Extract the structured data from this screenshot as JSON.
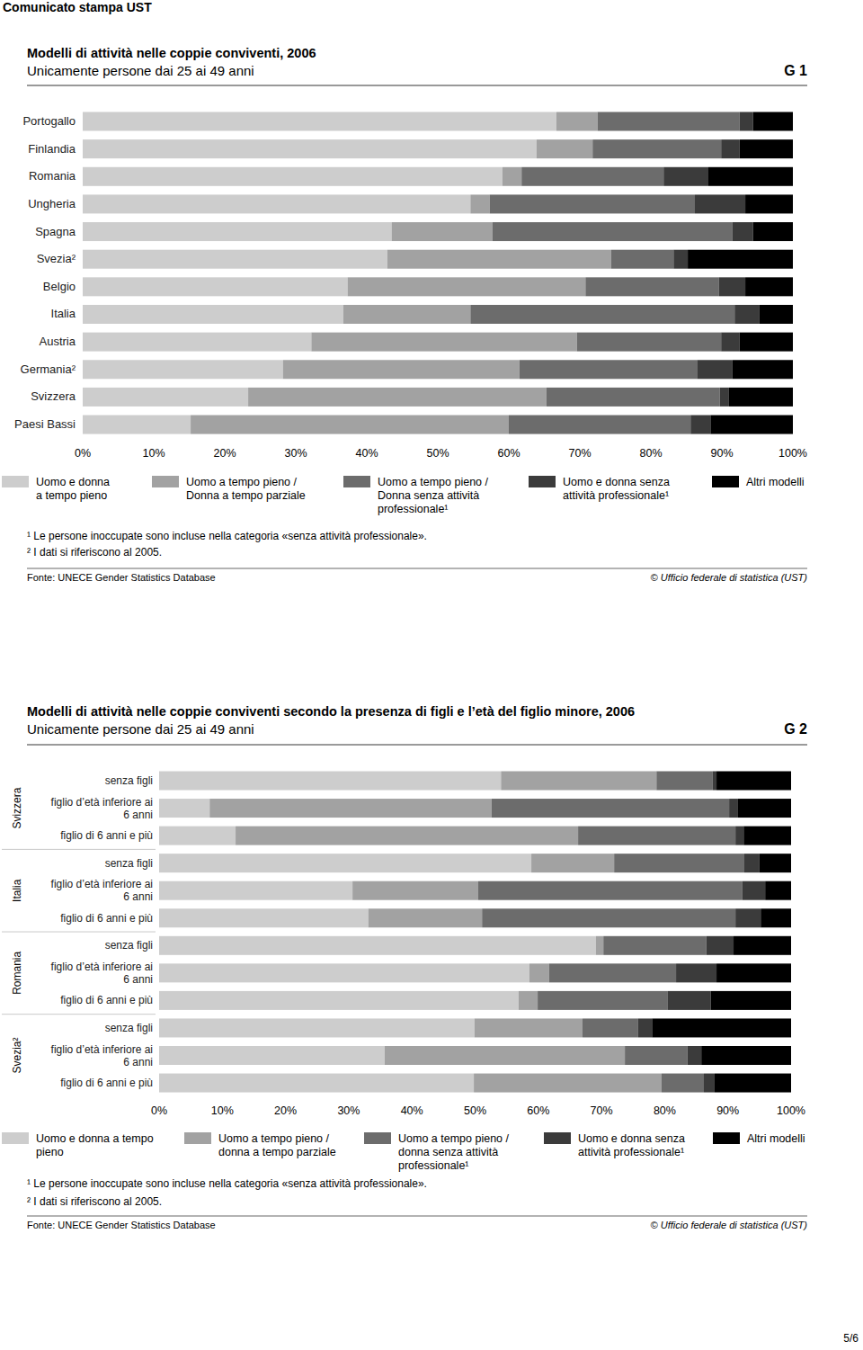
{
  "header": "Comunicato stampa UST",
  "page_number": "5/6",
  "chart_data": [
    {
      "type": "bar",
      "orientation": "horizontal",
      "stacked": true,
      "grid": false,
      "title": "Modelli di attività nelle coppie conviventi, 2006",
      "subtitle": "Unicamente persone dai 25 ai 49 anni",
      "chart_id": "G 1",
      "categories": [
        "Portogallo",
        "Finlandia",
        "Romania",
        "Ungheria",
        "Spagna",
        "Svezia²",
        "Belgio",
        "Italia",
        "Austria",
        "Germania²",
        "Svizzera",
        "Paesi Bassi"
      ],
      "series": [
        {
          "name": "Uomo e donna a tempo pieno",
          "color": "#cdcdcd",
          "values": [
            66.7,
            63.9,
            59.1,
            54.6,
            43.5,
            42.9,
            37.3,
            36.7,
            32.2,
            28.2,
            23.3,
            15.2
          ]
        },
        {
          "name": "Uomo a tempo pieno / Donna a tempo parziale",
          "color": "#a2a2a2",
          "values": [
            5.8,
            7.9,
            2.7,
            2.7,
            14.2,
            31.5,
            33.5,
            17.9,
            37.4,
            33.3,
            42.0,
            44.8
          ]
        },
        {
          "name": "Uomo a tempo pieno / Donna senza attività professionale¹",
          "color": "#6c6c6c",
          "values": [
            20.0,
            18.1,
            20.0,
            28.9,
            33.8,
            8.8,
            18.8,
            37.2,
            20.3,
            25.0,
            24.4,
            25.6
          ]
        },
        {
          "name": "Uomo e donna senza attività professionale¹",
          "color": "#3b3b3b",
          "values": [
            1.9,
            2.6,
            6.3,
            7.1,
            2.9,
            2.0,
            3.7,
            3.5,
            2.6,
            5.0,
            1.3,
            2.8
          ]
        },
        {
          "name": "Altri modelli",
          "color": "#000000",
          "values": [
            5.6,
            7.5,
            11.9,
            6.7,
            5.6,
            14.8,
            6.7,
            4.7,
            7.5,
            8.5,
            9.0,
            11.6
          ]
        }
      ],
      "xlim": [
        0,
        100
      ],
      "xticks": [
        {
          "value": 0,
          "label": "0%"
        },
        {
          "value": 10,
          "label": "10%"
        },
        {
          "value": 20,
          "label": "20%"
        },
        {
          "value": 30,
          "label": "30%"
        },
        {
          "value": 40,
          "label": "40%"
        },
        {
          "value": 50,
          "label": "50%"
        },
        {
          "value": 60,
          "label": "60%"
        },
        {
          "value": 70,
          "label": "70%"
        },
        {
          "value": 80,
          "label": "80%"
        },
        {
          "value": 90,
          "label": "90%"
        },
        {
          "value": 100,
          "label": "100%"
        }
      ],
      "footnotes": [
        "¹ Le persone inoccupate sono incluse nella categoria «senza attività professionale».",
        "² I dati si riferiscono al 2005."
      ],
      "source": "Fonte: UNECE Gender Statistics Database",
      "copyright": "© Ufficio federale di statistica (UST)"
    },
    {
      "type": "bar",
      "orientation": "horizontal",
      "stacked": true,
      "grid": false,
      "title": "Modelli di attività nelle coppie conviventi secondo la presenza di figli e l’età del figlio minore, 2006",
      "subtitle": "Unicamente persone dai 25 ai 49 anni",
      "chart_id": "G 2",
      "groups": [
        "Svizzera",
        "Italia",
        "Romania",
        "Svezia²"
      ],
      "categories": [
        "senza figli",
        "figlio d’età inferiore ai 6 anni",
        "figlio di 6 anni e più",
        "senza figli",
        "figlio d’età inferiore ai 6 anni",
        "figlio di 6 anni e più",
        "senza figli",
        "figlio d’età inferiore ai 6 anni",
        "figlio di 6 anni e più",
        "senza figli",
        "figlio d’età inferiore ai 6 anni",
        "figlio di 6 anni e più"
      ],
      "series": [
        {
          "name": "Uomo e donna a tempo pieno",
          "color": "#cdcdcd",
          "values": [
            54.1,
            8.0,
            12.1,
            58.9,
            30.6,
            33.1,
            69.1,
            58.6,
            56.9,
            49.9,
            35.7,
            49.8
          ]
        },
        {
          "name": "Uomo a tempo pieno / donna a tempo parziale",
          "color": "#a2a2a2",
          "values": [
            24.6,
            44.6,
            54.2,
            13.1,
            19.9,
            18.0,
            1.2,
            3.1,
            3.0,
            17.1,
            38.0,
            29.7
          ]
        },
        {
          "name": "Uomo a tempo pieno / donna senza attività professionale¹",
          "color": "#6c6c6c",
          "values": [
            8.9,
            37.6,
            24.9,
            20.6,
            41.8,
            40.1,
            16.3,
            20.1,
            20.6,
            8.8,
            9.9,
            6.7
          ]
        },
        {
          "name": "Uomo e donna senza attività professionale¹",
          "color": "#3b3b3b",
          "values": [
            0.6,
            1.4,
            1.3,
            2.4,
            3.6,
            4.0,
            4.3,
            6.4,
            6.8,
            2.2,
            2.2,
            1.7
          ]
        },
        {
          "name": "Altri modelli",
          "color": "#000000",
          "values": [
            11.8,
            8.4,
            7.5,
            5.0,
            4.1,
            4.8,
            9.1,
            11.8,
            12.7,
            22.0,
            14.2,
            12.1
          ]
        }
      ],
      "xlim": [
        0,
        100
      ],
      "xticks": [
        {
          "value": 0,
          "label": "0%"
        },
        {
          "value": 10,
          "label": "10%"
        },
        {
          "value": 20,
          "label": "20%"
        },
        {
          "value": 30,
          "label": "30%"
        },
        {
          "value": 40,
          "label": "40%"
        },
        {
          "value": 50,
          "label": "50%"
        },
        {
          "value": 60,
          "label": "60%"
        },
        {
          "value": 70,
          "label": "70%"
        },
        {
          "value": 80,
          "label": "80%"
        },
        {
          "value": 90,
          "label": "90%"
        },
        {
          "value": 100,
          "label": "100%"
        }
      ],
      "footnotes": [
        "¹ Le persone inoccupate sono incluse nella categoria «senza attività professionale».",
        "² I dati si riferiscono al 2005."
      ],
      "source": "Fonte: UNECE Gender Statistics Database",
      "copyright": "© Ufficio federale di statistica (UST)"
    }
  ]
}
